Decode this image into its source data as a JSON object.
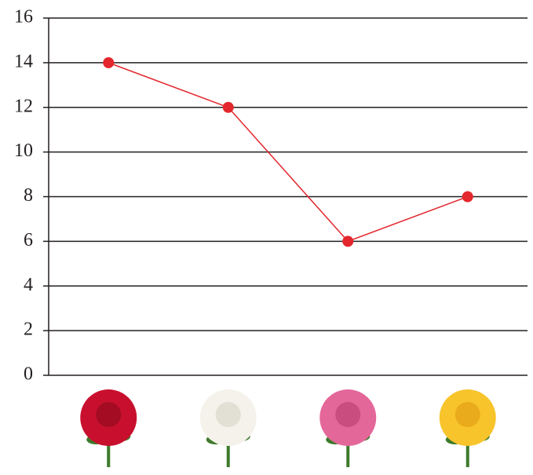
{
  "chart_data": {
    "type": "line",
    "categories": [
      null,
      null,
      null,
      null
    ],
    "values": [
      14,
      12,
      6,
      8
    ],
    "color": "#e3272d",
    "ylim": [
      0,
      16
    ],
    "yticks": [
      0,
      2,
      4,
      6,
      8,
      10,
      12,
      14,
      16
    ],
    "grid": true
  }
}
